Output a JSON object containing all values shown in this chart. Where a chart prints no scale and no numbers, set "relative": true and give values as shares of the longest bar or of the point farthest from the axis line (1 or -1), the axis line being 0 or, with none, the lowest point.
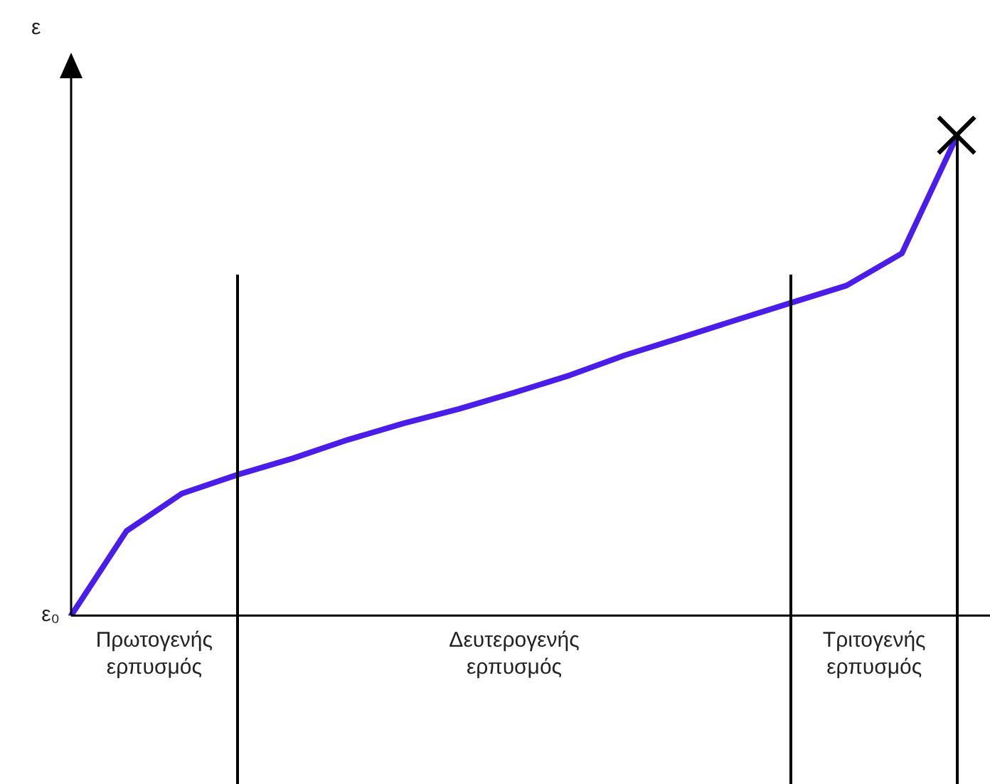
{
  "chart_data": {
    "type": "line",
    "relative": true,
    "grid": false,
    "legend": false,
    "categories": [
      null,
      null,
      null,
      null,
      null,
      null,
      null,
      null,
      null,
      null,
      null,
      null,
      null,
      null,
      null,
      null,
      null
    ],
    "series": [
      {
        "color": "#4a1ee8",
        "values": [
          0,
          0.176,
          0.254,
          0.293,
          0.327,
          0.366,
          0.4,
          0.43,
          0.464,
          0.5,
          0.542,
          0.578,
          0.615,
          0.651,
          0.687,
          0.754,
          1
        ]
      }
    ],
    "annotations": [
      "ε",
      "ε₀",
      "Πρωτογενής ερπυσμός",
      "Δευτερογενής ερπυσμός",
      "Τριτογενής ερπυσμός"
    ]
  }
}
